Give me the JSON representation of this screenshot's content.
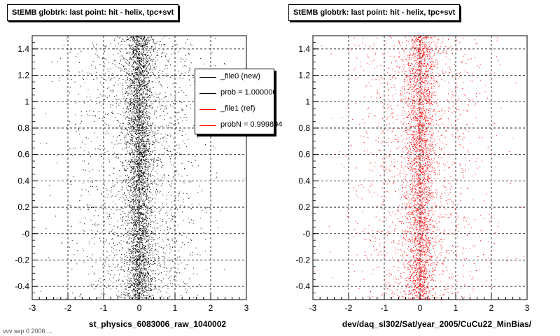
{
  "footer": "vvv sep 0 2006 ...",
  "chart_data": [
    {
      "type": "scatter",
      "title": "StEMB globtrk: last point: hit - helix, tpc+svt",
      "xlabel": "st_physics_6083006_raw_1040002",
      "ylabel": "",
      "xlim": [
        -3,
        3
      ],
      "ylim": [
        -0.5,
        1.5
      ],
      "x_ticks": [
        "-3",
        "-2",
        "-1",
        "0",
        "1",
        "2",
        "3"
      ],
      "y_ticks": [
        "-0.4",
        "-0.2",
        "-0",
        "0.2",
        "0.4",
        "0.6",
        "0.8",
        "1",
        "1.2",
        "1.4"
      ],
      "grid": true,
      "color": "#000000",
      "distribution": {
        "x_center": 0.0,
        "core_sigma": 0.18,
        "tail_sigma": 0.9,
        "n_points": 5200
      },
      "legend": [
        {
          "label": "_file0 (new)",
          "color": "#000000"
        },
        {
          "label": "prob = 1.000000",
          "color": "#000000"
        },
        {
          "label": "_file1 (ref)",
          "color": "#ff0000"
        },
        {
          "label": "probN = 0.999894",
          "color": "#ff0000"
        }
      ]
    },
    {
      "type": "scatter",
      "title": "StEMB globtrk: last point: hit - helix, tpc+svt",
      "xlabel": "dev/daq_sl302/Sat/year_2005/CuCu22_MinBias/",
      "ylabel": "",
      "xlim": [
        -3,
        3
      ],
      "ylim": [
        -0.5,
        1.5
      ],
      "x_ticks": [
        "-3",
        "-2",
        "-1",
        "0",
        "1",
        "2",
        "3"
      ],
      "y_ticks": [
        "-0.4",
        "-0.2",
        "-0",
        "0.2",
        "0.4",
        "0.6",
        "0.8",
        "1",
        "1.2",
        "1.4"
      ],
      "grid": true,
      "color": "#ff0000",
      "distribution": {
        "x_center": 0.0,
        "core_sigma": 0.2,
        "tail_sigma": 0.95,
        "n_points": 4200
      }
    }
  ]
}
